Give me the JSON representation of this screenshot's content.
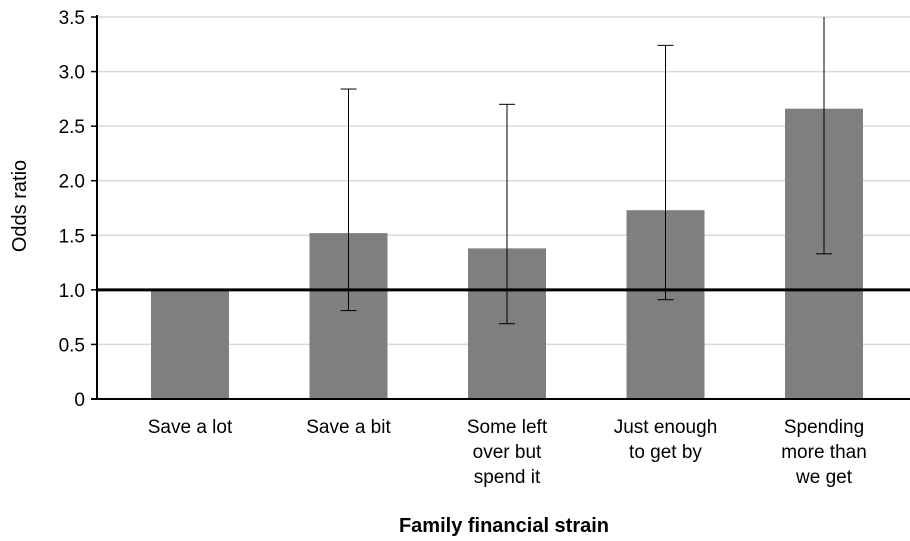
{
  "chart_data": {
    "type": "bar",
    "xlabel": "Family financial strain",
    "ylabel": "Odds ratio",
    "ylim": [
      0,
      3.5
    ],
    "yticks": [
      "0",
      "0.5",
      "1.0",
      "1.5",
      "2.0",
      "2.5",
      "3.0",
      "3.5"
    ],
    "categories": [
      [
        "Save a lot"
      ],
      [
        "Save a bit"
      ],
      [
        "Some left",
        "over but",
        "spend it"
      ],
      [
        "Just enough",
        "to get by"
      ],
      [
        "Spending",
        "more than",
        "we get"
      ]
    ],
    "values": [
      1.0,
      1.52,
      1.38,
      1.73,
      2.66
    ],
    "error_low": [
      null,
      0.81,
      0.69,
      0.91,
      1.33
    ],
    "error_high": [
      null,
      2.84,
      2.7,
      3.24,
      3.5
    ],
    "reference_line": 1.0,
    "grid": true,
    "legend": "none",
    "colors": {
      "bar": "#7f7f7f",
      "grid": "#d9d9d9",
      "axis": "#000000",
      "error": "#000000"
    }
  }
}
